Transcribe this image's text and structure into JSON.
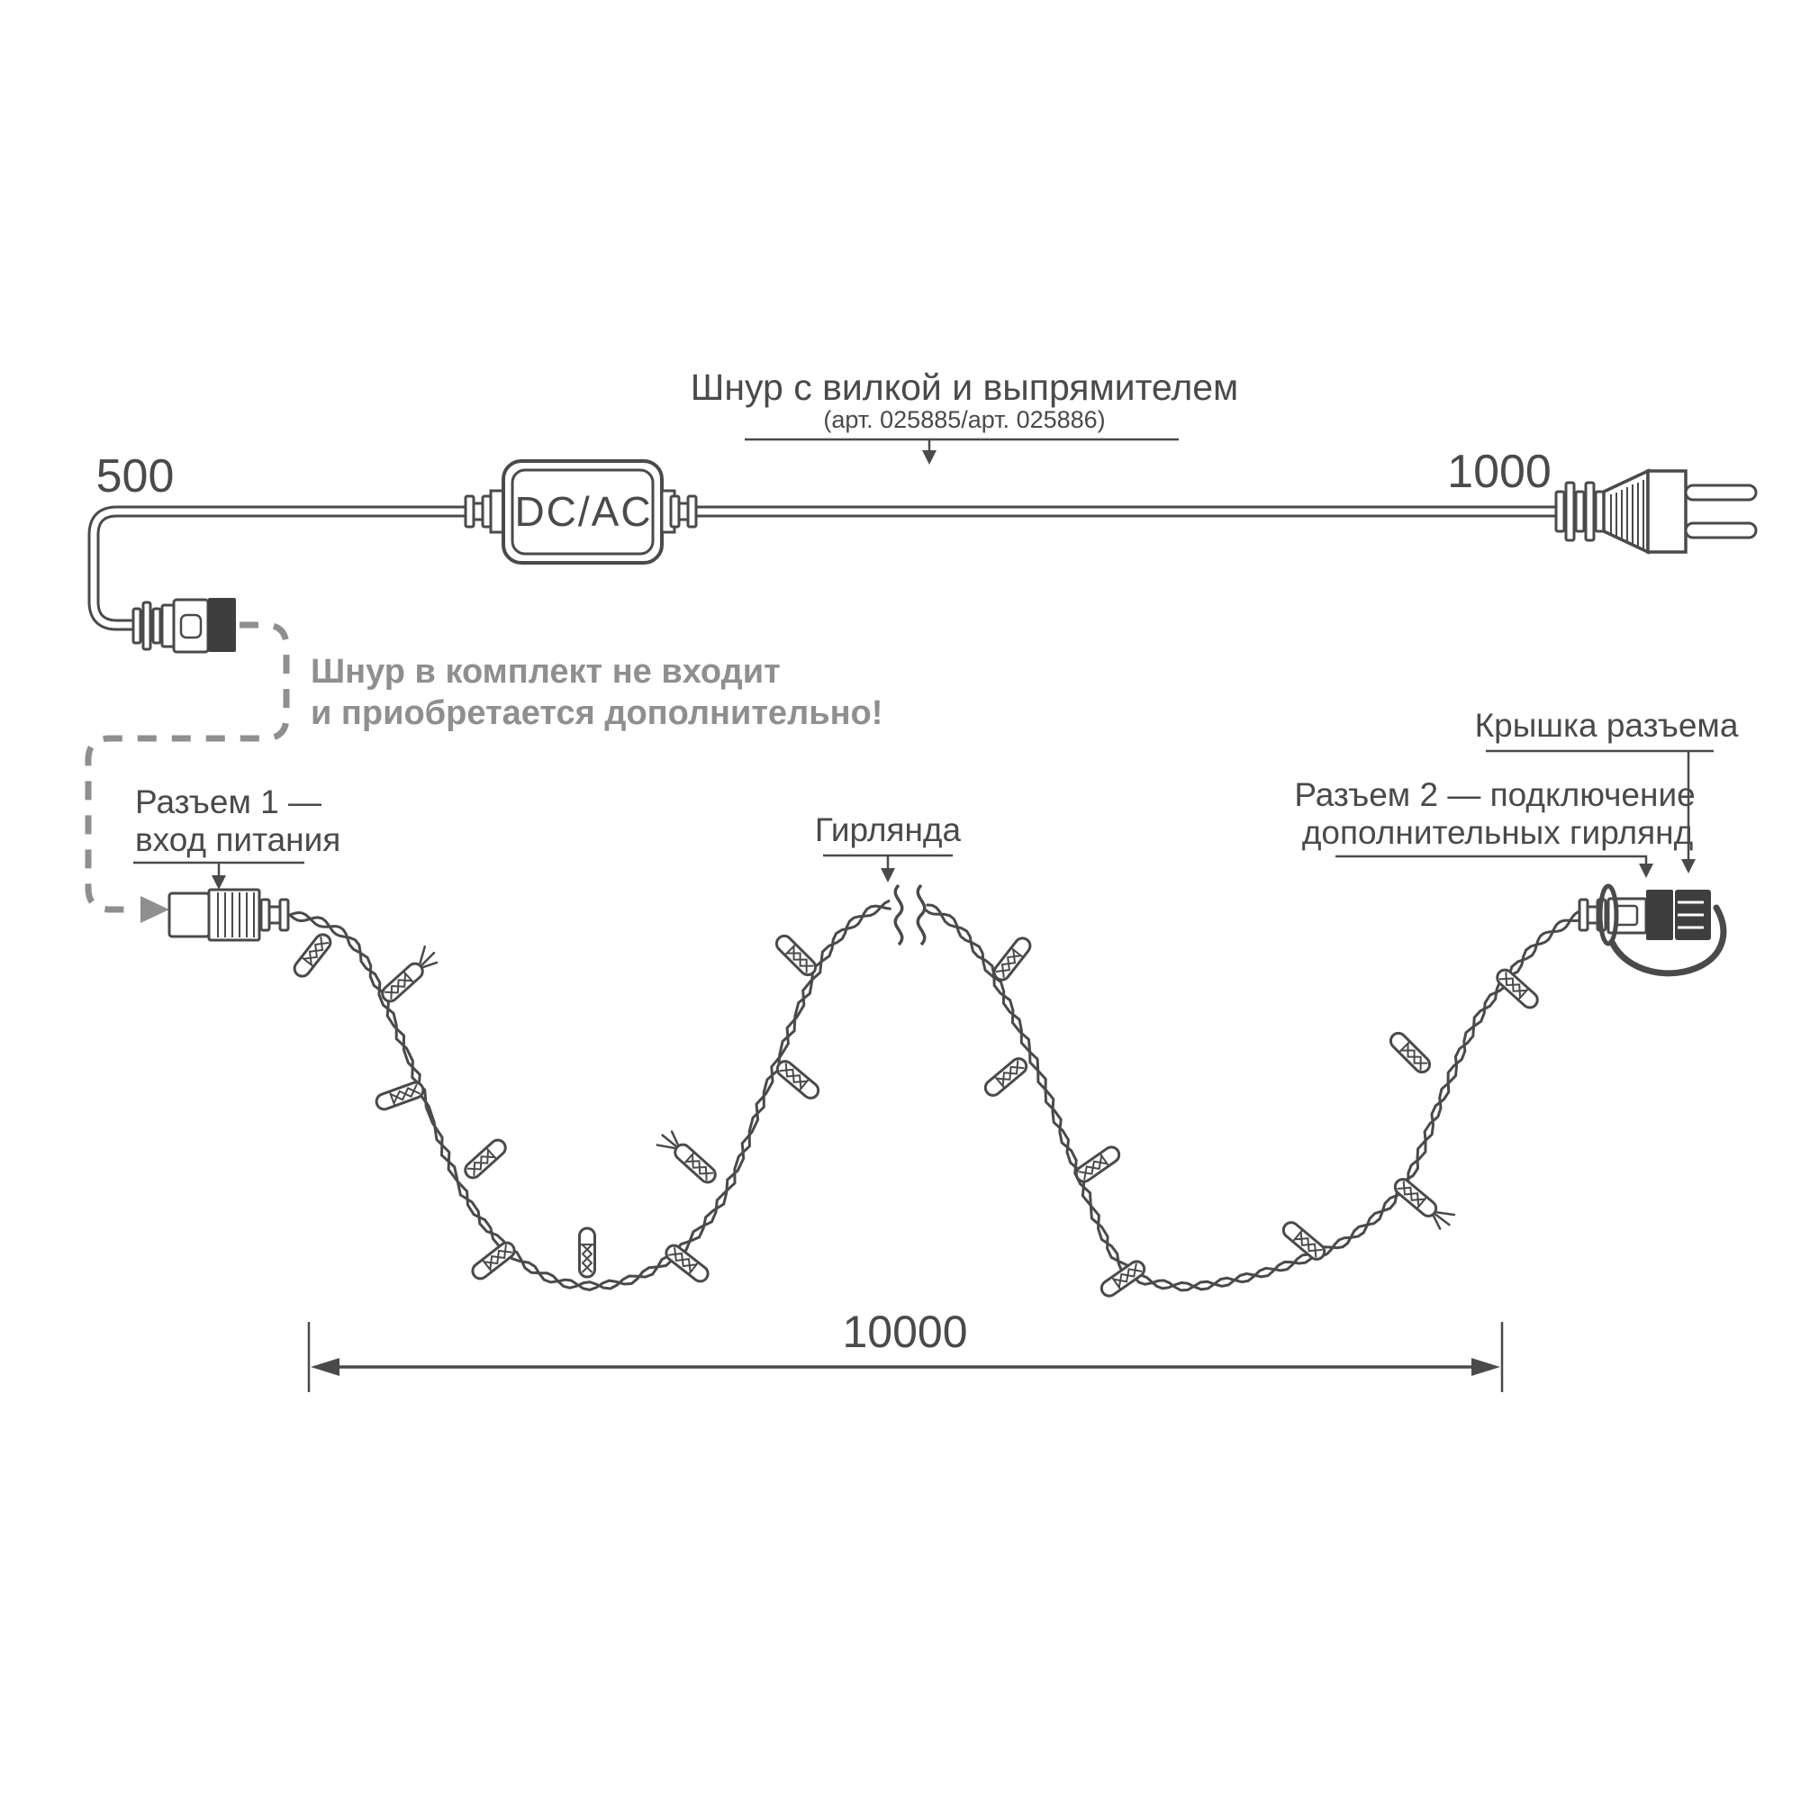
{
  "colors": {
    "ink": "#4a4a4a",
    "ink_dark": "#3e3e3e",
    "muted": "#8f8f8f",
    "background": "#ffffff"
  },
  "power_cord": {
    "title": "Шнур с вилкой и выпрямителем",
    "subtitle": "(арт. 025885/арт. 025886)",
    "converter_label": "DC/AC",
    "left_length_mm": "500",
    "right_length_mm": "1000",
    "note_line1": "Шнур в комплект не входит",
    "note_line2": "и приобретается дополнительно!"
  },
  "garland": {
    "connector1_label_line1": "Разъем 1 —",
    "connector1_label_line2": "вход питания",
    "string_label": "Гирлянда",
    "cap_label": "Крышка разъема",
    "connector2_label_line1": "Разъем 2 — подключение",
    "connector2_label_line2": "дополнительных гирлянд",
    "total_length_mm": "10000",
    "led_bulb_count": 18
  }
}
